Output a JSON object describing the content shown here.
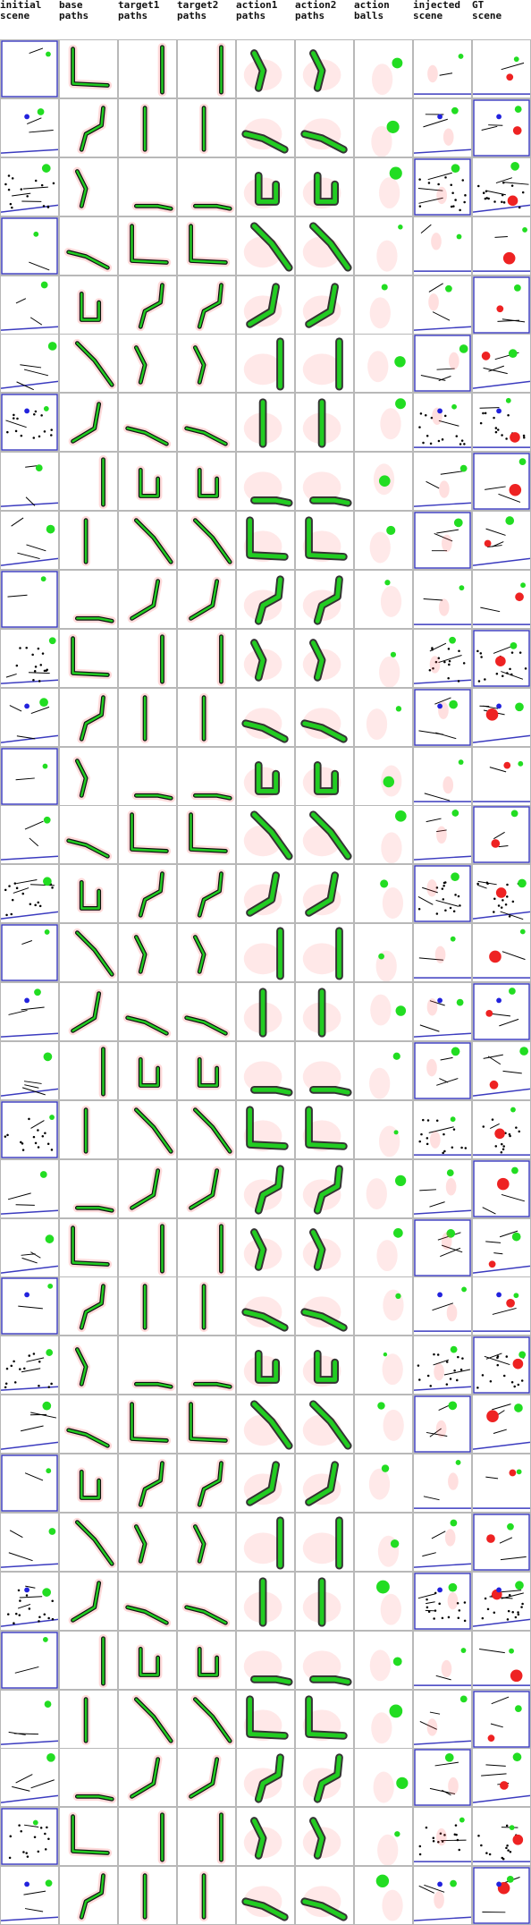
{
  "columns": [
    {
      "id": "initial-scene",
      "label": "initial\nscene"
    },
    {
      "id": "base-paths",
      "label": "base\npaths"
    },
    {
      "id": "target1-paths",
      "label": "target1\npaths"
    },
    {
      "id": "target2-paths",
      "label": "target2\npaths"
    },
    {
      "id": "action1-paths",
      "label": "action1\npaths"
    },
    {
      "id": "action2-paths",
      "label": "action2\npaths"
    },
    {
      "id": "action-balls",
      "label": "action\nballs"
    },
    {
      "id": "injected-scene",
      "label": "injected\nscene"
    },
    {
      "id": "gt-scene",
      "label": "GT\nscene"
    }
  ],
  "row_count": 32,
  "colors": {
    "background": "#ffffff",
    "cell_border": "#b8b8b8",
    "boundary": "#3b3bbf",
    "path_dark": "#111111",
    "path_green": "#22cc22",
    "heat_red": "#ff4d4d",
    "ball_green": "#22dd22",
    "ball_red": "#ee2222",
    "ball_blue": "#2222dd",
    "scene_black": "#000000"
  }
}
